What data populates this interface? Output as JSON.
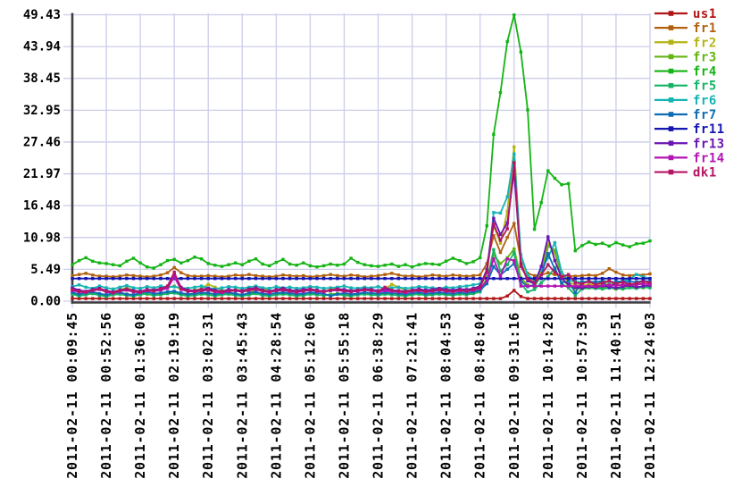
{
  "chart_data": {
    "type": "line",
    "title": "",
    "xlabel": "",
    "ylabel": "",
    "grid": true,
    "legend_position": "top-right-outside",
    "marker": "square",
    "n_points": 86,
    "x_axis": {
      "tick_labels": [
        "2011-02-11 00:09:45",
        "2011-02-11 00:52:56",
        "2011-02-11 01:36:08",
        "2011-02-11 02:19:19",
        "2011-02-11 03:02:31",
        "2011-02-11 03:45:43",
        "2011-02-11 04:28:54",
        "2011-02-11 05:12:06",
        "2011-02-11 05:55:18",
        "2011-02-11 06:38:29",
        "2011-02-11 07:21:41",
        "2011-02-11 08:04:53",
        "2011-02-11 08:48:04",
        "2011-02-11 09:31:16",
        "2011-02-11 10:14:28",
        "2011-02-11 10:57:39",
        "2011-02-11 11:40:51",
        "2011-02-11 12:24:03"
      ]
    },
    "y_axis": {
      "tick_labels": [
        "0.00",
        "5.49",
        "10.98",
        "16.48",
        "21.97",
        "27.46",
        "32.95",
        "38.45",
        "43.94",
        "49.43"
      ],
      "min": 0,
      "max": 49.43
    },
    "series": [
      {
        "name": "us1",
        "color": "#b01414",
        "values": [
          0.45,
          0.45,
          0.45,
          0.45,
          0.45,
          0.45,
          0.45,
          0.45,
          0.45,
          0.45,
          0.45,
          0.45,
          0.45,
          0.45,
          0.45,
          0.45,
          0.45,
          0.45,
          0.45,
          0.45,
          0.45,
          0.45,
          0.45,
          0.45,
          0.45,
          0.45,
          0.45,
          0.45,
          0.45,
          0.45,
          0.45,
          0.45,
          0.45,
          0.45,
          0.45,
          0.45,
          0.45,
          0.45,
          0.45,
          0.45,
          0.45,
          0.45,
          0.45,
          0.45,
          0.45,
          0.45,
          0.45,
          0.45,
          0.45,
          0.45,
          0.45,
          0.45,
          0.45,
          0.45,
          0.45,
          0.45,
          0.45,
          0.45,
          0.45,
          0.45,
          0.45,
          0.45,
          0.45,
          0.45,
          0.9,
          1.85,
          0.8,
          0.45,
          0.45,
          0.45,
          0.45,
          0.45,
          0.45,
          0.45,
          0.45,
          0.45,
          0.45,
          0.45,
          0.45,
          0.45,
          0.45,
          0.45,
          0.45,
          0.45,
          0.45,
          0.45
        ]
      },
      {
        "name": "fr1",
        "color": "#b2600e",
        "values": [
          4.4,
          4.6,
          4.8,
          4.5,
          4.3,
          4.3,
          4.2,
          4.3,
          4.5,
          4.4,
          4.3,
          4.2,
          4.3,
          4.5,
          4.9,
          5.8,
          4.9,
          4.4,
          4.3,
          4.3,
          4.4,
          4.3,
          4.2,
          4.3,
          4.5,
          4.4,
          4.6,
          4.4,
          4.3,
          4.2,
          4.3,
          4.5,
          4.4,
          4.3,
          4.4,
          4.2,
          4.3,
          4.4,
          4.6,
          4.4,
          4.3,
          4.5,
          4.4,
          4.2,
          4.3,
          4.4,
          4.6,
          4.8,
          4.5,
          4.3,
          4.4,
          4.2,
          4.3,
          4.5,
          4.4,
          4.3,
          4.5,
          4.4,
          4.3,
          4.4,
          4.5,
          6.5,
          11.3,
          8.4,
          11.0,
          13.4,
          7.0,
          4.8,
          4.4,
          4.5,
          4.9,
          4.6,
          4.4,
          4.4,
          4.3,
          4.4,
          4.5,
          4.4,
          4.8,
          5.6,
          5.0,
          4.5,
          4.4,
          4.6,
          4.5,
          4.7
        ]
      },
      {
        "name": "fr2",
        "color": "#b4b414",
        "values": [
          2.0,
          1.7,
          1.5,
          1.9,
          2.2,
          1.8,
          1.6,
          2.0,
          2.3,
          1.9,
          1.6,
          1.8,
          2.1,
          1.9,
          2.4,
          2.6,
          2.0,
          1.7,
          1.9,
          2.2,
          2.9,
          2.4,
          1.9,
          1.7,
          2.0,
          1.8,
          1.6,
          1.9,
          2.2,
          1.9,
          1.7,
          2.0,
          1.8,
          1.6,
          1.9,
          2.1,
          1.8,
          1.7,
          2.0,
          2.2,
          1.9,
          1.7,
          1.8,
          2.0,
          1.9,
          1.7,
          2.1,
          2.9,
          2.4,
          1.9,
          1.8,
          2.0,
          1.9,
          1.7,
          1.9,
          2.1,
          1.9,
          1.8,
          2.0,
          2.1,
          2.4,
          5.5,
          13.0,
          10.0,
          15.5,
          26.6,
          7.5,
          4.2,
          3.5,
          5.0,
          9.9,
          8.3,
          4.5,
          3.3,
          2.8,
          2.7,
          2.9,
          2.8,
          3.0,
          3.2,
          2.9,
          2.7,
          2.8,
          3.0,
          2.9,
          3.1
        ]
      },
      {
        "name": "fr3",
        "color": "#64b414",
        "values": [
          1.3,
          1.0,
          1.2,
          1.5,
          1.1,
          0.9,
          1.2,
          1.4,
          1.1,
          1.0,
          1.3,
          1.2,
          1.0,
          1.3,
          1.5,
          1.6,
          1.2,
          1.0,
          1.2,
          1.4,
          1.1,
          1.0,
          1.2,
          1.3,
          1.1,
          1.0,
          1.3,
          1.5,
          1.2,
          1.0,
          1.1,
          1.3,
          1.2,
          1.0,
          1.2,
          1.4,
          1.1,
          1.0,
          1.2,
          1.3,
          1.2,
          1.0,
          1.1,
          1.3,
          1.2,
          1.1,
          1.3,
          1.2,
          1.1,
          1.0,
          1.2,
          1.3,
          1.1,
          1.2,
          1.4,
          1.2,
          1.1,
          1.3,
          1.2,
          1.4,
          1.8,
          4.0,
          8.0,
          6.5,
          7.5,
          9.0,
          4.0,
          2.8,
          2.5,
          4.5,
          9.5,
          8.8,
          4.0,
          2.6,
          2.2,
          2.1,
          2.3,
          2.2,
          2.4,
          2.3,
          2.1,
          2.2,
          2.4,
          2.6,
          2.3,
          2.5
        ]
      },
      {
        "name": "fr4",
        "color": "#14b414",
        "values": [
          6.3,
          7.0,
          7.5,
          6.9,
          6.6,
          6.5,
          6.3,
          6.1,
          6.9,
          7.4,
          6.6,
          5.9,
          5.7,
          6.3,
          7.0,
          7.2,
          6.6,
          7.0,
          7.6,
          7.3,
          6.5,
          6.2,
          6.0,
          6.3,
          6.6,
          6.3,
          6.9,
          7.3,
          6.4,
          6.1,
          6.7,
          7.2,
          6.4,
          6.2,
          6.6,
          6.1,
          5.9,
          6.1,
          6.4,
          6.2,
          6.4,
          7.4,
          6.7,
          6.3,
          6.1,
          6.0,
          6.2,
          6.4,
          6.0,
          6.3,
          5.9,
          6.3,
          6.5,
          6.4,
          6.3,
          6.9,
          7.4,
          7.0,
          6.5,
          6.8,
          7.5,
          13.0,
          28.8,
          36.0,
          44.8,
          49.4,
          43.0,
          33.0,
          12.4,
          17.0,
          22.5,
          21.2,
          20.1,
          20.3,
          8.7,
          9.6,
          10.2,
          9.8,
          10.0,
          9.5,
          10.1,
          9.7,
          9.4,
          9.9,
          10.0,
          10.4
        ]
      },
      {
        "name": "fr5",
        "color": "#14b464",
        "values": [
          1.2,
          0.9,
          1.1,
          1.3,
          1.0,
          0.8,
          1.1,
          1.2,
          1.0,
          0.9,
          1.1,
          1.3,
          1.0,
          1.1,
          1.3,
          1.4,
          1.1,
          0.9,
          1.0,
          1.2,
          1.1,
          0.9,
          1.1,
          1.2,
          1.0,
          0.9,
          1.1,
          1.3,
          1.0,
          0.9,
          1.1,
          1.2,
          1.1,
          0.9,
          1.0,
          1.2,
          1.1,
          1.0,
          1.1,
          1.2,
          1.0,
          0.9,
          1.1,
          1.2,
          1.1,
          1.0,
          1.2,
          1.1,
          1.0,
          0.9,
          1.1,
          1.2,
          1.0,
          1.1,
          1.2,
          1.1,
          1.0,
          1.2,
          1.1,
          1.3,
          1.6,
          3.5,
          8.9,
          5.2,
          6.3,
          8.4,
          3.0,
          1.6,
          2.0,
          3.2,
          4.2,
          5.8,
          3.0,
          2.3,
          1.0,
          2.1,
          2.3,
          2.2,
          2.1,
          2.3,
          2.2,
          2.1,
          2.3,
          2.2,
          2.4,
          2.3
        ]
      },
      {
        "name": "fr6",
        "color": "#14b4b4",
        "values": [
          2.5,
          2.8,
          2.4,
          2.2,
          2.6,
          2.3,
          2.1,
          2.4,
          2.7,
          2.3,
          2.2,
          2.5,
          2.3,
          2.6,
          2.4,
          2.5,
          2.3,
          2.2,
          2.4,
          2.6,
          2.3,
          2.1,
          2.3,
          2.5,
          2.4,
          2.2,
          2.4,
          2.6,
          2.3,
          2.2,
          2.5,
          2.3,
          2.4,
          2.2,
          2.3,
          2.5,
          2.4,
          2.2,
          2.3,
          2.4,
          2.6,
          2.3,
          2.2,
          2.4,
          2.3,
          2.5,
          2.2,
          2.3,
          2.4,
          2.2,
          2.3,
          2.5,
          2.4,
          2.3,
          2.2,
          2.4,
          2.3,
          2.5,
          2.6,
          2.8,
          3.0,
          5.0,
          15.3,
          15.2,
          18.0,
          25.4,
          8.0,
          4.5,
          3.6,
          5.5,
          7.5,
          10.1,
          5.0,
          3.6,
          3.4,
          3.3,
          3.4,
          3.3,
          3.5,
          3.4,
          3.3,
          3.5,
          3.8,
          4.6,
          4.2,
          3.9
        ]
      },
      {
        "name": "fr7",
        "color": "#0e6cb4",
        "values": [
          1.5,
          1.2,
          1.4,
          1.6,
          1.3,
          1.1,
          1.4,
          1.5,
          1.2,
          1.1,
          1.4,
          1.6,
          1.3,
          1.4,
          1.6,
          1.7,
          1.4,
          1.2,
          1.3,
          1.5,
          1.4,
          1.2,
          1.4,
          1.5,
          1.3,
          1.1,
          1.4,
          1.6,
          1.3,
          1.2,
          1.4,
          1.5,
          1.4,
          1.2,
          1.3,
          1.5,
          1.4,
          1.3,
          0.9,
          1.2,
          1.4,
          1.2,
          1.3,
          1.5,
          1.4,
          1.3,
          1.5,
          1.4,
          1.3,
          1.2,
          1.4,
          1.5,
          1.3,
          1.4,
          1.5,
          1.4,
          1.3,
          1.5,
          1.4,
          1.6,
          1.9,
          3.0,
          6.0,
          4.5,
          5.5,
          6.5,
          3.5,
          2.5,
          2.8,
          4.5,
          8.2,
          5.5,
          3.2,
          3.4,
          1.5,
          3.3,
          3.4,
          3.3,
          3.4,
          2.3,
          3.4,
          3.3,
          3.4,
          3.3,
          3.5,
          3.4
        ]
      },
      {
        "name": "fr11",
        "color": "#1414b0",
        "values": [
          3.9,
          3.9,
          3.9,
          3.9,
          3.9,
          3.9,
          3.9,
          3.9,
          3.9,
          3.9,
          3.9,
          3.9,
          3.9,
          3.9,
          3.9,
          3.9,
          3.9,
          3.9,
          3.9,
          3.9,
          3.9,
          3.9,
          3.9,
          3.9,
          3.9,
          3.9,
          3.9,
          3.9,
          3.9,
          3.9,
          3.9,
          3.9,
          3.9,
          3.9,
          3.9,
          3.9,
          3.9,
          3.9,
          3.9,
          3.9,
          3.9,
          3.9,
          3.9,
          3.9,
          3.9,
          3.9,
          3.9,
          3.9,
          3.9,
          3.9,
          3.9,
          3.9,
          3.9,
          3.9,
          3.9,
          3.9,
          3.9,
          3.9,
          3.9,
          3.9,
          3.9,
          3.9,
          3.9,
          3.9,
          3.9,
          3.9,
          3.9,
          3.9,
          3.9,
          3.9,
          3.9,
          3.9,
          3.9,
          3.9,
          3.9,
          3.9,
          3.9,
          3.9,
          3.9,
          3.9,
          3.9,
          3.9,
          3.9,
          3.9,
          3.9,
          3.9
        ]
      },
      {
        "name": "fr13",
        "color": "#6a14b4",
        "values": [
          2.3,
          1.9,
          1.7,
          2.0,
          2.2,
          1.8,
          1.6,
          1.9,
          2.1,
          1.8,
          1.7,
          2.0,
          1.9,
          2.2,
          2.5,
          4.7,
          2.4,
          1.9,
          1.8,
          2.0,
          2.2,
          1.9,
          1.7,
          2.0,
          1.9,
          1.8,
          2.1,
          2.3,
          1.9,
          1.7,
          2.0,
          2.2,
          1.9,
          1.8,
          2.0,
          2.1,
          1.9,
          1.7,
          1.9,
          2.1,
          2.0,
          1.8,
          1.9,
          2.1,
          2.0,
          1.8,
          2.0,
          1.9,
          1.8,
          1.7,
          1.9,
          2.1,
          1.9,
          2.0,
          2.2,
          2.0,
          1.9,
          2.1,
          2.0,
          2.2,
          2.6,
          5.5,
          14.3,
          11.5,
          13.5,
          22.3,
          6.5,
          3.5,
          3.0,
          6.0,
          11.1,
          7.0,
          4.0,
          2.8,
          2.4,
          2.3,
          2.5,
          2.4,
          2.6,
          2.5,
          2.3,
          2.5,
          2.7,
          2.4,
          2.6,
          2.7
        ]
      },
      {
        "name": "fr14",
        "color": "#b414b4",
        "values": [
          1.8,
          1.6,
          1.5,
          1.8,
          2.0,
          1.6,
          1.4,
          1.7,
          1.9,
          1.6,
          1.5,
          1.8,
          1.7,
          1.9,
          2.2,
          4.2,
          2.0,
          1.7,
          1.6,
          1.8,
          1.9,
          1.6,
          1.5,
          1.7,
          1.8,
          1.6,
          1.9,
          2.0,
          1.7,
          1.5,
          1.8,
          1.9,
          1.7,
          1.5,
          1.7,
          1.9,
          1.7,
          1.6,
          1.8,
          1.9,
          1.7,
          1.6,
          1.7,
          1.9,
          1.8,
          1.6,
          1.8,
          1.7,
          1.6,
          1.5,
          1.7,
          1.8,
          1.6,
          1.7,
          1.9,
          1.7,
          1.6,
          1.8,
          1.7,
          1.9,
          2.2,
          3.5,
          7.3,
          4.3,
          7.3,
          7.0,
          2.6,
          2.6,
          2.6,
          2.6,
          2.6,
          2.6,
          2.6,
          2.6,
          2.6,
          2.6,
          2.6,
          2.6,
          2.7,
          2.8,
          2.7,
          2.8,
          2.9,
          2.8,
          3.0,
          2.9
        ]
      },
      {
        "name": "dk1",
        "color": "#b41464",
        "values": [
          2.0,
          1.7,
          1.6,
          1.9,
          2.1,
          1.7,
          1.5,
          1.8,
          2.0,
          1.7,
          1.6,
          1.9,
          1.8,
          2.1,
          2.6,
          5.0,
          2.2,
          1.8,
          1.7,
          1.9,
          2.0,
          1.7,
          1.6,
          1.8,
          1.9,
          1.7,
          2.0,
          2.1,
          1.8,
          1.6,
          1.9,
          2.0,
          1.8,
          1.6,
          1.8,
          2.0,
          1.8,
          1.7,
          1.9,
          2.0,
          1.8,
          1.7,
          1.8,
          2.0,
          1.9,
          1.7,
          2.4,
          1.9,
          1.7,
          1.6,
          1.8,
          1.9,
          1.7,
          1.8,
          2.0,
          1.8,
          1.7,
          1.9,
          1.8,
          2.0,
          2.4,
          5.0,
          13.3,
          10.5,
          12.5,
          23.9,
          6.0,
          3.8,
          3.2,
          4.5,
          6.3,
          5.0,
          4.2,
          4.6,
          3.2,
          3.0,
          3.4,
          2.9,
          3.2,
          3.5,
          3.0,
          3.3,
          2.9,
          3.1,
          3.4,
          3.2
        ]
      }
    ]
  },
  "style": {
    "grid_color": "#ccccea",
    "axis_color": "#3f3f3f",
    "background": "#ffffff",
    "text_color": "#000000"
  }
}
